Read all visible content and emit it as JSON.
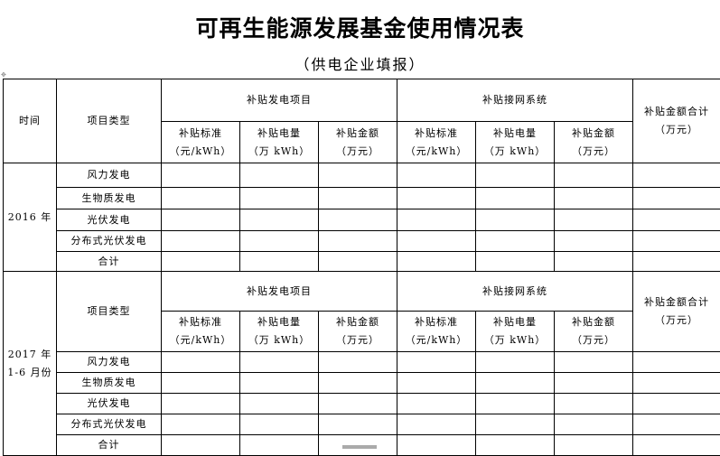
{
  "title": "可再生能源发展基金使用情况表",
  "subtitle": "（供电企业填报）",
  "header": {
    "time": "时间",
    "type": "项目类型",
    "group1": "补贴发电项目",
    "group2": "补贴接网系统",
    "total": "补贴金额合计",
    "total_unit": "（万元）",
    "g1_cols": [
      {
        "l": "补贴标准",
        "u": "（元/kWh）"
      },
      {
        "l": "补贴电量",
        "u": "（万 kWh）"
      },
      {
        "l": "补贴金额",
        "u": "（万元）"
      }
    ],
    "g2_cols": [
      {
        "l": "补贴标准",
        "u": "（元/kWh）"
      },
      {
        "l": "补贴电量",
        "u": "（万 kWh）"
      },
      {
        "l": "补贴金额",
        "u": "（万元）"
      }
    ]
  },
  "blocks": [
    {
      "time": "2016 年",
      "time2": ""
    },
    {
      "time": "2017 年",
      "time2": "1-6 月份"
    }
  ],
  "row_types": [
    "风力发电",
    "生物质发电",
    "光伏发电",
    "分布式光伏发电",
    "合计"
  ]
}
